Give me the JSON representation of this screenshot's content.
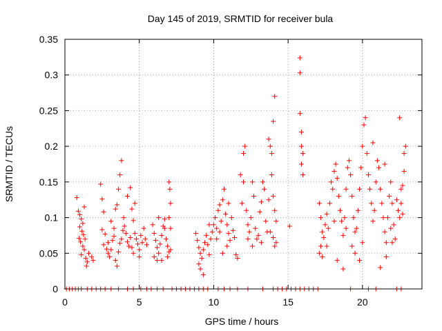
{
  "chart_data": {
    "type": "scatter",
    "title": "Day 145 of 2019, SRMTID for receiver bula",
    "xlabel": "GPS time / hours",
    "ylabel": "SRMTID / TECUs",
    "xlim": [
      0,
      24
    ],
    "ylim": [
      0,
      0.35
    ],
    "xticks": [
      0,
      5,
      10,
      15,
      20
    ],
    "xtick_labels": [
      "0",
      "5",
      "10",
      "15",
      "20"
    ],
    "yticks": [
      0,
      0.05,
      0.1,
      0.15,
      0.2,
      0.25,
      0.3,
      0.35
    ],
    "ytick_labels": [
      "0",
      "0.05",
      "0.1",
      "0.15",
      "0.2",
      "0.25",
      "0.3",
      "0.35"
    ],
    "grid": true,
    "marker": "plus",
    "series": [
      {
        "name": "SRMTID",
        "color": "#ff0000",
        "points": [
          [
            0.1,
            0
          ],
          [
            0.3,
            0
          ],
          [
            0.5,
            0
          ],
          [
            0.7,
            0
          ],
          [
            0.9,
            0
          ],
          [
            1.1,
            0
          ],
          [
            1.5,
            0
          ],
          [
            1.8,
            0
          ],
          [
            2.1,
            0
          ],
          [
            2.4,
            0
          ],
          [
            2.7,
            0
          ],
          [
            3.1,
            0
          ],
          [
            3.6,
            0
          ],
          [
            4.2,
            0
          ],
          [
            4.6,
            0
          ],
          [
            5.1,
            0
          ],
          [
            5.5,
            0
          ],
          [
            5.8,
            0
          ],
          [
            6.2,
            0
          ],
          [
            6.6,
            0
          ],
          [
            7.2,
            0
          ],
          [
            7.5,
            0
          ],
          [
            7.8,
            0
          ],
          [
            8.1,
            0
          ],
          [
            8.4,
            0
          ],
          [
            8.7,
            0
          ],
          [
            9.0,
            0
          ],
          [
            9.3,
            0
          ],
          [
            9.6,
            0
          ],
          [
            10.3,
            0
          ],
          [
            10.7,
            0
          ],
          [
            11.1,
            0
          ],
          [
            11.6,
            0
          ],
          [
            12.3,
            0
          ],
          [
            13.3,
            0
          ],
          [
            14.0,
            0
          ],
          [
            14.3,
            0
          ],
          [
            14.6,
            0
          ],
          [
            14.9,
            0
          ],
          [
            15.2,
            0
          ],
          [
            15.5,
            0
          ],
          [
            15.8,
            0
          ],
          [
            16.1,
            0
          ],
          [
            16.4,
            0
          ],
          [
            16.7,
            0
          ],
          [
            17.0,
            0
          ],
          [
            19.2,
            0
          ],
          [
            20.4,
            0
          ],
          [
            20.9,
            0
          ],
          [
            22.3,
            0
          ],
          [
            22.6,
            0
          ],
          [
            0.8,
            0.128
          ],
          [
            0.9,
            0.109
          ],
          [
            1.0,
            0.104
          ],
          [
            1.1,
            0.098
          ],
          [
            1.2,
            0.092
          ],
          [
            1.0,
            0.087
          ],
          [
            1.15,
            0.081
          ],
          [
            1.25,
            0.076
          ],
          [
            0.95,
            0.071
          ],
          [
            1.05,
            0.066
          ],
          [
            1.2,
            0.06
          ],
          [
            1.3,
            0.055
          ],
          [
            1.1,
            0.048
          ],
          [
            1.4,
            0.043
          ],
          [
            1.5,
            0.038
          ],
          [
            1.45,
            0.032
          ],
          [
            1.3,
            0.115
          ],
          [
            1.35,
            0.07
          ],
          [
            1.6,
            0.05
          ],
          [
            1.8,
            0.045
          ],
          [
            1.9,
            0.04
          ],
          [
            2.4,
            0.147
          ],
          [
            2.5,
            0.126
          ],
          [
            2.6,
            0.108
          ],
          [
            2.5,
            0.083
          ],
          [
            2.7,
            0.077
          ],
          [
            2.6,
            0.062
          ],
          [
            2.8,
            0.056
          ],
          [
            2.9,
            0.05
          ],
          [
            3.0,
            0.045
          ],
          [
            3.1,
            0.055
          ],
          [
            3.2,
            0.068
          ],
          [
            3.3,
            0.074
          ],
          [
            3.1,
            0.095
          ],
          [
            3.4,
            0.112
          ],
          [
            3.5,
            0.118
          ],
          [
            3.6,
            0.14
          ],
          [
            3.7,
            0.16
          ],
          [
            3.8,
            0.18
          ],
          [
            3.5,
            0.032
          ],
          [
            3.4,
            0.04
          ],
          [
            3.6,
            0.052
          ],
          [
            3.7,
            0.064
          ],
          [
            3.8,
            0.07
          ],
          [
            3.9,
            0.082
          ],
          [
            3.95,
            0.1
          ],
          [
            4.0,
            0.088
          ],
          [
            4.1,
            0.078
          ],
          [
            4.2,
            0.066
          ],
          [
            4.3,
            0.06
          ],
          [
            4.4,
            0.072
          ],
          [
            4.5,
            0.058
          ],
          [
            4.6,
            0.05
          ],
          [
            4.2,
            0.13
          ],
          [
            4.4,
            0.142
          ],
          [
            4.5,
            0.112
          ],
          [
            4.6,
            0.096
          ],
          [
            4.7,
            0.078
          ],
          [
            4.8,
            0.07
          ],
          [
            4.9,
            0.063
          ],
          [
            5.0,
            0.055
          ],
          [
            5.1,
            0.075
          ],
          [
            5.2,
            0.065
          ],
          [
            5.3,
            0.085
          ],
          [
            5.4,
            0.07
          ],
          [
            5.5,
            0.062
          ],
          [
            5.0,
            0.045
          ],
          [
            4.7,
            0.12
          ],
          [
            3.3,
            0.085
          ],
          [
            2.9,
            0.065
          ],
          [
            5.9,
            0.09
          ],
          [
            6.0,
            0.078
          ],
          [
            6.1,
            0.068
          ],
          [
            6.2,
            0.058
          ],
          [
            6.3,
            0.05
          ],
          [
            6.0,
            0.045
          ],
          [
            6.4,
            0.063
          ],
          [
            6.5,
            0.075
          ],
          [
            6.6,
            0.088
          ],
          [
            6.7,
            0.098
          ],
          [
            6.8,
            0.07
          ],
          [
            6.9,
            0.06
          ],
          [
            7.0,
            0.052
          ],
          [
            6.2,
            0.04
          ],
          [
            6.5,
            0.04
          ],
          [
            6.9,
            0.045
          ],
          [
            7.0,
            0.15
          ],
          [
            7.05,
            0.14
          ],
          [
            7.1,
            0.12
          ],
          [
            7.0,
            0.1
          ],
          [
            7.1,
            0.085
          ],
          [
            6.7,
            0.085
          ],
          [
            7.1,
            0.055
          ],
          [
            6.3,
            0.1
          ],
          [
            8.8,
            0.078
          ],
          [
            8.9,
            0.068
          ],
          [
            9.0,
            0.058
          ],
          [
            9.1,
            0.05
          ],
          [
            9.2,
            0.043
          ],
          [
            9.0,
            0.035
          ],
          [
            9.1,
            0.028
          ],
          [
            9.3,
            0.055
          ],
          [
            9.4,
            0.065
          ],
          [
            9.5,
            0.075
          ],
          [
            9.6,
            0.062
          ],
          [
            9.7,
            0.048
          ],
          [
            9.8,
            0.07
          ],
          [
            9.9,
            0.08
          ],
          [
            10.0,
            0.09
          ],
          [
            10.1,
            0.1
          ],
          [
            10.2,
            0.085
          ],
          [
            10.3,
            0.11
          ],
          [
            10.4,
            0.118
          ],
          [
            10.5,
            0.095
          ],
          [
            10.6,
            0.125
          ],
          [
            10.7,
            0.14
          ],
          [
            10.8,
            0.105
          ],
          [
            10.9,
            0.09
          ],
          [
            11.0,
            0.078
          ],
          [
            11.1,
            0.068
          ],
          [
            11.2,
            0.1
          ],
          [
            11.3,
            0.082
          ],
          [
            11.0,
            0.12
          ],
          [
            11.4,
            0.072
          ],
          [
            11.5,
            0.048
          ],
          [
            11.6,
            0.043
          ],
          [
            10.4,
            0.08
          ],
          [
            10.2,
            0.07
          ],
          [
            9.7,
            0.09
          ],
          [
            9.3,
            0.02
          ],
          [
            10.6,
            0.05
          ],
          [
            10.9,
            0.06
          ],
          [
            11.8,
            0.16
          ],
          [
            11.9,
            0.12
          ],
          [
            12.0,
            0.19
          ],
          [
            12.1,
            0.2
          ],
          [
            12.0,
            0.15
          ],
          [
            12.2,
            0.11
          ],
          [
            12.3,
            0.09
          ],
          [
            12.4,
            0.08
          ],
          [
            12.3,
            0.07
          ],
          [
            12.5,
            0.1
          ],
          [
            12.6,
            0.15
          ],
          [
            12.7,
            0.13
          ],
          [
            12.8,
            0.085
          ],
          [
            12.9,
            0.07
          ],
          [
            13.0,
            0.075
          ],
          [
            13.1,
            0.108
          ],
          [
            13.2,
            0.122
          ],
          [
            13.3,
            0.15
          ],
          [
            13.4,
            0.14
          ],
          [
            13.5,
            0.095
          ],
          [
            13.6,
            0.08
          ],
          [
            13.7,
            0.125
          ],
          [
            13.2,
            0.065
          ],
          [
            12.6,
            0.06
          ],
          [
            13.7,
            0.21
          ],
          [
            13.8,
            0.2
          ],
          [
            13.9,
            0.19
          ],
          [
            14.0,
            0.235
          ],
          [
            14.1,
            0.27
          ],
          [
            13.9,
            0.16
          ],
          [
            14.0,
            0.13
          ],
          [
            14.1,
            0.11
          ],
          [
            14.2,
            0.095
          ],
          [
            14.0,
            0.072
          ],
          [
            13.8,
            0.08
          ],
          [
            14.2,
            0.065
          ],
          [
            14.1,
            0.06
          ],
          [
            15.1,
            0.088
          ],
          [
            15.8,
            0.324
          ],
          [
            15.8,
            0.303
          ],
          [
            15.8,
            0.246
          ],
          [
            15.9,
            0.22
          ],
          [
            15.9,
            0.2
          ],
          [
            16.0,
            0.19
          ],
          [
            15.9,
            0.175
          ],
          [
            16.0,
            0.16
          ],
          [
            17.1,
            0.12
          ],
          [
            17.2,
            0.1
          ],
          [
            17.3,
            0.08
          ],
          [
            17.2,
            0.06
          ],
          [
            17.1,
            0.05
          ],
          [
            17.3,
            0.045
          ],
          [
            17.4,
            0.072
          ],
          [
            17.5,
            0.09
          ],
          [
            17.6,
            0.105
          ],
          [
            17.7,
            0.085
          ],
          [
            17.8,
            0.12
          ],
          [
            17.9,
            0.15
          ],
          [
            18.0,
            0.14
          ],
          [
            18.1,
            0.165
          ],
          [
            18.2,
            0.175
          ],
          [
            18.3,
            0.155
          ],
          [
            18.4,
            0.13
          ],
          [
            18.5,
            0.11
          ],
          [
            18.6,
            0.095
          ],
          [
            18.7,
            0.075
          ],
          [
            18.8,
            0.1
          ],
          [
            18.9,
            0.14
          ],
          [
            19.0,
            0.17
          ],
          [
            19.1,
            0.18
          ],
          [
            19.2,
            0.16
          ],
          [
            19.3,
            0.13
          ],
          [
            19.4,
            0.1
          ],
          [
            19.5,
            0.08
          ],
          [
            19.6,
            0.085
          ],
          [
            19.7,
            0.11
          ],
          [
            19.8,
            0.14
          ],
          [
            19.9,
            0.17
          ],
          [
            20.0,
            0.2
          ],
          [
            20.1,
            0.23
          ],
          [
            20.2,
            0.24
          ],
          [
            20.3,
            0.19
          ],
          [
            20.4,
            0.16
          ],
          [
            20.5,
            0.14
          ],
          [
            20.6,
            0.12
          ],
          [
            20.7,
            0.095
          ],
          [
            20.8,
            0.11
          ],
          [
            20.9,
            0.15
          ],
          [
            21.0,
            0.18
          ],
          [
            21.1,
            0.17
          ],
          [
            21.2,
            0.14
          ],
          [
            21.3,
            0.12
          ],
          [
            21.4,
            0.1
          ],
          [
            21.5,
            0.08
          ],
          [
            21.6,
            0.065
          ],
          [
            21.7,
            0.1
          ],
          [
            21.8,
            0.13
          ],
          [
            21.9,
            0.15
          ],
          [
            22.0,
            0.12
          ],
          [
            22.1,
            0.09
          ],
          [
            22.2,
            0.07
          ],
          [
            22.3,
            0.125
          ],
          [
            22.4,
            0.11
          ],
          [
            22.5,
            0.1
          ],
          [
            22.6,
            0.12
          ],
          [
            22.7,
            0.145
          ],
          [
            22.8,
            0.19
          ],
          [
            22.9,
            0.2
          ],
          [
            22.8,
            0.165
          ],
          [
            22.7,
            0.105
          ],
          [
            22.6,
            0.14
          ],
          [
            18.7,
            0.028
          ],
          [
            19.5,
            0.05
          ],
          [
            19.8,
            0.04
          ],
          [
            21.6,
            0.045
          ],
          [
            21.2,
            0.03
          ],
          [
            22.0,
            0.065
          ],
          [
            21.5,
            0.175
          ],
          [
            20.7,
            0.205
          ],
          [
            22.5,
            0.24
          ],
          [
            18.3,
            0.04
          ],
          [
            18.1,
            0.095
          ],
          [
            20.0,
            0.065
          ],
          [
            17.6,
            0.06
          ],
          [
            18.9,
            0.085
          ],
          [
            19.3,
            0.06
          ],
          [
            21.9,
            0.085
          ]
        ]
      }
    ]
  }
}
